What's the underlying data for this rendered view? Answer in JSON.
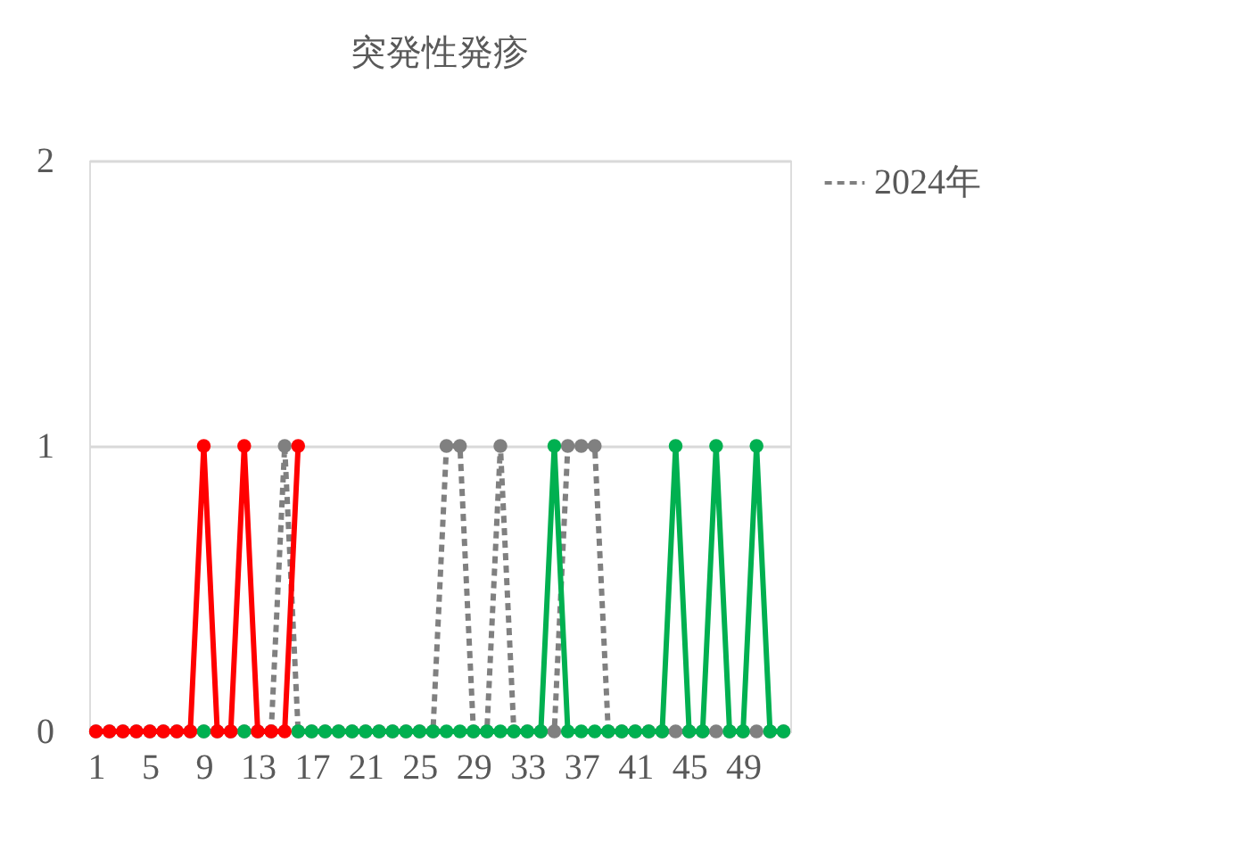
{
  "chart_data": {
    "type": "line",
    "title": "突発性発疹",
    "x": [
      1,
      2,
      3,
      4,
      5,
      6,
      7,
      8,
      9,
      10,
      11,
      12,
      13,
      14,
      15,
      16,
      17,
      18,
      19,
      20,
      21,
      22,
      23,
      24,
      25,
      26,
      27,
      28,
      29,
      30,
      31,
      32,
      33,
      34,
      35,
      36,
      37,
      38,
      39,
      40,
      41,
      42,
      43,
      44,
      45,
      46,
      47,
      48,
      49,
      50,
      51,
      52
    ],
    "xlim": [
      0.5,
      52.5
    ],
    "xticks": [
      1,
      5,
      9,
      13,
      17,
      21,
      25,
      29,
      33,
      37,
      41,
      45,
      49
    ],
    "ylim": [
      0,
      2
    ],
    "yticks": [
      0,
      1,
      2
    ],
    "grid": "y",
    "legend": "top right",
    "marker": "circle",
    "series": [
      {
        "name": "2024年",
        "color": "#808080",
        "line_style": "dashed",
        "values": [
          0,
          0,
          0,
          0,
          0,
          0,
          0,
          0,
          0,
          0,
          0,
          0,
          0,
          0,
          1,
          0,
          0,
          0,
          0,
          0,
          0,
          0,
          0,
          0,
          0,
          0,
          1,
          1,
          0,
          0,
          1,
          0,
          0,
          0,
          0,
          1,
          1,
          1,
          0,
          0,
          0,
          0,
          0,
          0,
          0,
          0,
          0,
          0,
          0,
          0,
          0,
          0
        ]
      },
      {
        "color": "#00b050",
        "line_style": "solid",
        "values": [
          null,
          null,
          null,
          null,
          null,
          null,
          null,
          null,
          0,
          null,
          null,
          0,
          null,
          null,
          null,
          0,
          0,
          0,
          0,
          0,
          0,
          0,
          0,
          0,
          0,
          0,
          0,
          0,
          0,
          0,
          0,
          0,
          0,
          0,
          1,
          0,
          0,
          0,
          0,
          0,
          0,
          0,
          0,
          1,
          0,
          0,
          1,
          0,
          0,
          1,
          0,
          0
        ]
      },
      {
        "color": "#ff0000",
        "line_style": "solid",
        "values": [
          0,
          0,
          0,
          0,
          0,
          0,
          0,
          0,
          1,
          0,
          0,
          1,
          0,
          0,
          0,
          1,
          null,
          null,
          null,
          null,
          null,
          null,
          null,
          null,
          null,
          null,
          null,
          null,
          null,
          null,
          null,
          null,
          null,
          null,
          null,
          null,
          null,
          null,
          null,
          null,
          null,
          null,
          null,
          null,
          null,
          null,
          null,
          null,
          null,
          null,
          null,
          null
        ]
      }
    ]
  }
}
